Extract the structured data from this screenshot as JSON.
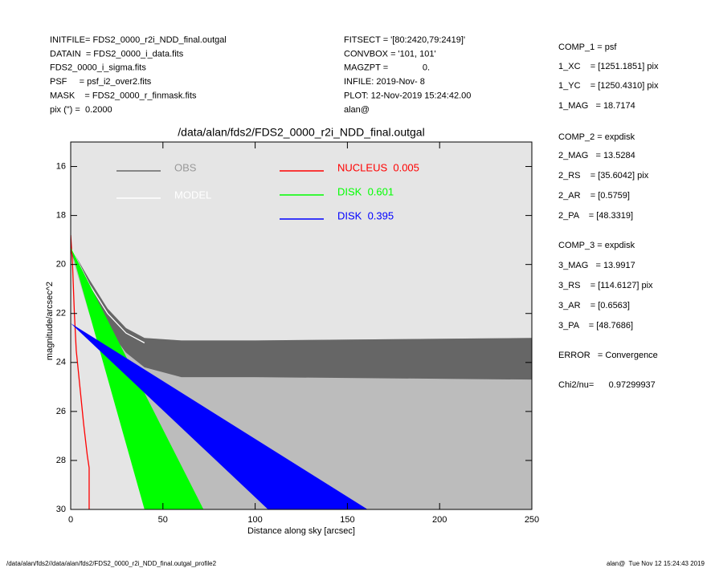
{
  "header": {
    "left": [
      "INITFILE= FDS2_0000_r2i_NDD_final.outgal",
      "DATAIN  = FDS2_0000_i_data.fits",
      "FDS2_0000_i_sigma.fits",
      "PSF     = psf_i2_over2.fits",
      "MASK    = FDS2_0000_r_finmask.fits",
      "pix (\") =  0.2000"
    ],
    "middle": [
      "FITSECT = '[80:2420,79:2419]'",
      "CONVBOX = '101, 101'",
      "MAGZPT =              0.",
      "INFILE: 2019-Nov- 8",
      "PLOT: 12-Nov-2019 15:24:42.00",
      "alan@"
    ],
    "right": [
      "COMP_1 = psf",
      "1_XC    = [1251.1851] pix",
      "1_YC    = [1250.4310] pix",
      "1_MAG   = 18.7174",
      "COMP_2 = expdisk",
      "2_MAG   = 13.5284",
      "2_RS    = [35.6042] pix",
      "2_AR    = [0.5759]",
      "2_PA    = [48.3319]",
      "COMP_3 = expdisk",
      "3_MAG   = 13.9917",
      "3_RS    = [114.6127] pix",
      "3_AR    = [0.6563]",
      "3_PA    = [48.7686]",
      "ERROR   = Convergence",
      "Chi2/nu=      0.97299937"
    ]
  },
  "footer": {
    "left": "/data/alan/fds2//data/alan/fds2/FDS2_0000_r2i_NDD_final.outgal_profile2",
    "right": "alan@  Tue Nov 12 15:24:43 2019"
  },
  "chart_data": {
    "type": "line",
    "title": "/data/alan/fds2/FDS2_0000_r2i_NDD_final.outgal",
    "xlabel": "Distance along sky [arcsec]",
    "ylabel": "magnitude/arcsec^2",
    "xlim": [
      0,
      250
    ],
    "xticks": [
      0,
      50,
      100,
      150,
      200,
      250
    ],
    "ylim": [
      30,
      15
    ],
    "yticks": [
      16,
      18,
      20,
      22,
      24,
      26,
      28,
      30
    ],
    "background": "#e5e5e5",
    "series": [
      {
        "name": "OBS",
        "color": "#666666",
        "x": [
          0,
          10,
          20,
          30,
          40,
          60,
          100,
          250
        ],
        "values": [
          19.3,
          20.6,
          21.8,
          22.6,
          23.0,
          23.1,
          23.1,
          23.0
        ],
        "values2": [
          19.5,
          21.2,
          22.6,
          23.6,
          24.2,
          24.6,
          24.6,
          24.7
        ],
        "values3": [
          19.5,
          22.0,
          24.0,
          26.0,
          28.0,
          30,
          30,
          30
        ]
      },
      {
        "name": "MODEL",
        "color": "#ffffff",
        "x": [
          0,
          10,
          20,
          30,
          40
        ],
        "values": [
          19.3,
          20.8,
          22.0,
          22.8,
          23.2
        ]
      },
      {
        "name": "NUCLEUS  0.005",
        "color": "#ff0000",
        "x": [
          0,
          1,
          2,
          3,
          5,
          7,
          9,
          10,
          10
        ],
        "values": [
          18.8,
          20,
          22,
          23.5,
          25,
          26.5,
          27.8,
          28.3,
          30
        ]
      },
      {
        "name": "DISK  0.601",
        "color": "#00ff00",
        "x": [
          0,
          40
        ],
        "values": [
          19.3,
          30
        ],
        "x2": [
          0,
          72
        ],
        "values2": [
          19.3,
          30
        ]
      },
      {
        "name": "DISK  0.395",
        "color": "#0000ff",
        "x": [
          0,
          107
        ],
        "values": [
          22.4,
          30
        ],
        "x2": [
          0,
          161
        ],
        "values2": [
          22.4,
          30
        ]
      }
    ]
  }
}
